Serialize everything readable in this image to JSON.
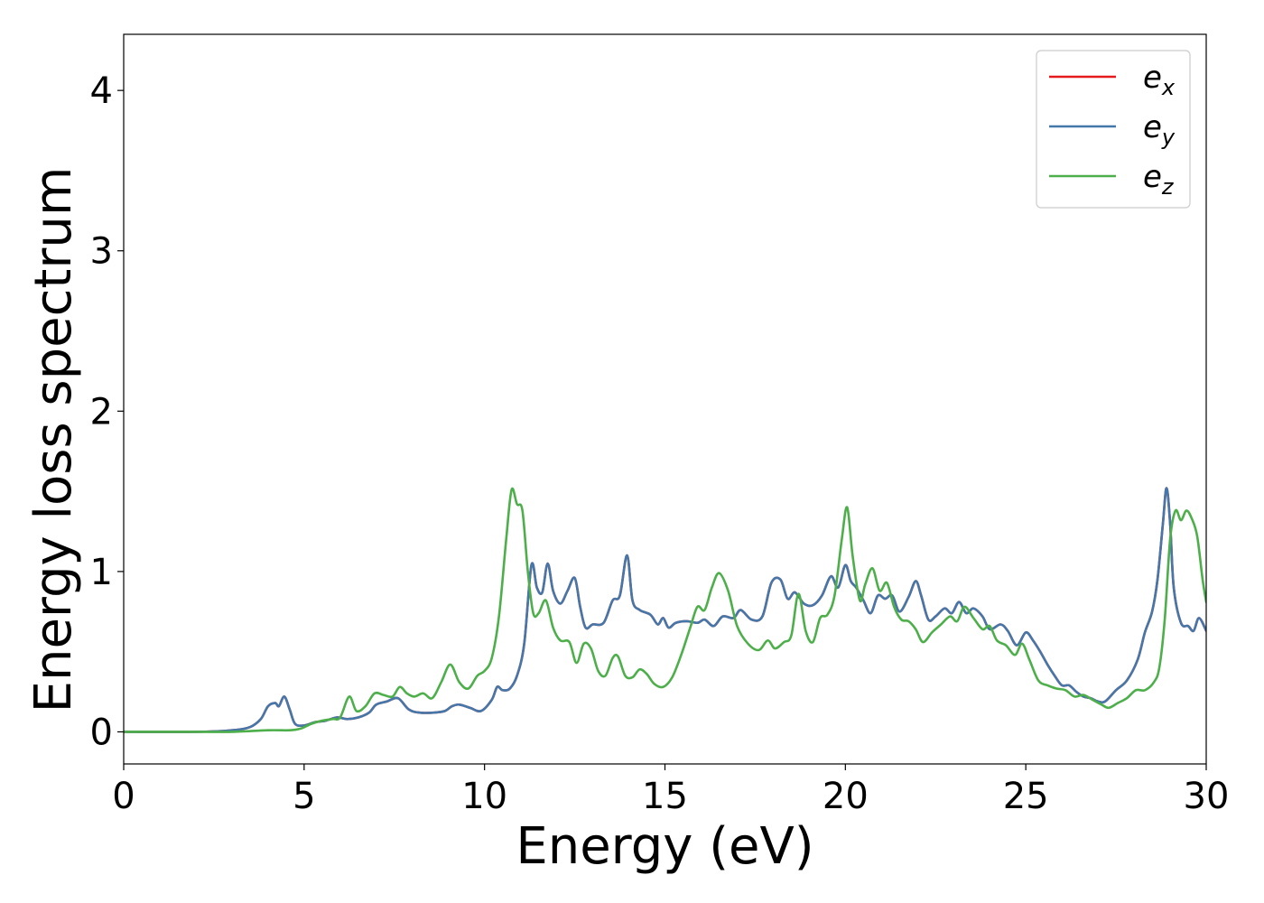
{
  "chart_data": {
    "type": "line",
    "title": "",
    "xlabel": "Energy (eV)",
    "ylabel": "Energy loss spectrum",
    "xlim": [
      0,
      30
    ],
    "ylim": [
      -0.2,
      4.35
    ],
    "xticks": [
      0,
      5,
      10,
      15,
      20,
      25,
      30
    ],
    "yticks": [
      0,
      1,
      2,
      3,
      4
    ],
    "grid": false,
    "legend_position": "top-right",
    "series": [
      {
        "name": "e_x",
        "label_main": "e",
        "label_sub": "x",
        "color": "#e41a1c",
        "x": [
          0,
          2,
          3,
          3.5,
          3.8,
          4.0,
          4.2,
          4.3,
          4.45,
          4.6,
          4.75,
          5.0,
          5.3,
          5.6,
          5.9,
          6.2,
          6.5,
          6.8,
          7.0,
          7.3,
          7.6,
          7.9,
          8.2,
          8.6,
          8.9,
          9.1,
          9.3,
          9.6,
          9.9,
          10.2,
          10.35,
          10.5,
          10.7,
          10.9,
          11.1,
          11.3,
          11.45,
          11.6,
          11.75,
          11.9,
          12.1,
          12.3,
          12.5,
          12.65,
          12.8,
          13.0,
          13.3,
          13.55,
          13.75,
          13.95,
          14.1,
          14.3,
          14.6,
          14.8,
          14.95,
          15.1,
          15.3,
          15.6,
          15.9,
          16.1,
          16.35,
          16.6,
          16.9,
          17.1,
          17.4,
          17.7,
          17.95,
          18.2,
          18.4,
          18.6,
          18.85,
          19.1,
          19.35,
          19.6,
          19.8,
          20.0,
          20.15,
          20.3,
          20.5,
          20.7,
          20.9,
          21.1,
          21.3,
          21.5,
          21.75,
          21.95,
          22.1,
          22.3,
          22.5,
          22.75,
          22.95,
          23.15,
          23.35,
          23.55,
          23.8,
          24.0,
          24.3,
          24.5,
          24.75,
          25.0,
          25.2,
          25.4,
          25.6,
          25.8,
          26.0,
          26.2,
          26.4,
          26.6,
          26.8,
          27.0,
          27.2,
          27.5,
          27.8,
          28.1,
          28.3,
          28.5,
          28.65,
          28.8,
          28.9,
          29.0,
          29.1,
          29.3,
          29.5,
          29.65,
          29.8,
          30.0
        ],
        "y": [
          0,
          0,
          0.01,
          0.03,
          0.08,
          0.16,
          0.18,
          0.16,
          0.22,
          0.14,
          0.05,
          0.04,
          0.06,
          0.07,
          0.09,
          0.08,
          0.09,
          0.12,
          0.17,
          0.19,
          0.21,
          0.14,
          0.12,
          0.12,
          0.13,
          0.16,
          0.17,
          0.15,
          0.13,
          0.2,
          0.28,
          0.26,
          0.27,
          0.35,
          0.55,
          1.04,
          0.9,
          0.87,
          1.05,
          0.88,
          0.8,
          0.88,
          0.96,
          0.78,
          0.65,
          0.67,
          0.68,
          0.82,
          0.85,
          1.1,
          0.82,
          0.76,
          0.73,
          0.67,
          0.71,
          0.65,
          0.68,
          0.69,
          0.68,
          0.7,
          0.66,
          0.72,
          0.71,
          0.76,
          0.7,
          0.72,
          0.93,
          0.95,
          0.83,
          0.87,
          0.8,
          0.79,
          0.85,
          0.97,
          0.9,
          1.04,
          0.94,
          0.9,
          0.82,
          0.74,
          0.85,
          0.83,
          0.85,
          0.75,
          0.84,
          0.94,
          0.85,
          0.7,
          0.72,
          0.77,
          0.74,
          0.81,
          0.74,
          0.77,
          0.72,
          0.64,
          0.67,
          0.63,
          0.54,
          0.62,
          0.57,
          0.5,
          0.42,
          0.35,
          0.29,
          0.29,
          0.25,
          0.22,
          0.21,
          0.19,
          0.19,
          0.26,
          0.32,
          0.45,
          0.62,
          0.75,
          0.95,
          1.3,
          1.52,
          1.3,
          0.9,
          0.68,
          0.66,
          0.63,
          0.71,
          0.63
        ]
      },
      {
        "name": "e_y",
        "label_main": "e",
        "label_sub": "y",
        "color": "#4477aa",
        "x": [
          0,
          2,
          3,
          3.5,
          3.8,
          4.0,
          4.2,
          4.3,
          4.45,
          4.6,
          4.75,
          5.0,
          5.3,
          5.6,
          5.9,
          6.2,
          6.5,
          6.8,
          7.0,
          7.3,
          7.6,
          7.9,
          8.2,
          8.6,
          8.9,
          9.1,
          9.3,
          9.6,
          9.9,
          10.2,
          10.35,
          10.5,
          10.7,
          10.9,
          11.1,
          11.3,
          11.45,
          11.6,
          11.75,
          11.9,
          12.1,
          12.3,
          12.5,
          12.65,
          12.8,
          13.0,
          13.3,
          13.55,
          13.75,
          13.95,
          14.1,
          14.3,
          14.6,
          14.8,
          14.95,
          15.1,
          15.3,
          15.6,
          15.9,
          16.1,
          16.35,
          16.6,
          16.9,
          17.1,
          17.4,
          17.7,
          17.95,
          18.2,
          18.4,
          18.6,
          18.85,
          19.1,
          19.35,
          19.6,
          19.8,
          20.0,
          20.15,
          20.3,
          20.5,
          20.7,
          20.9,
          21.1,
          21.3,
          21.5,
          21.75,
          21.95,
          22.1,
          22.3,
          22.5,
          22.75,
          22.95,
          23.15,
          23.35,
          23.55,
          23.8,
          24.0,
          24.3,
          24.5,
          24.75,
          25.0,
          25.2,
          25.4,
          25.6,
          25.8,
          26.0,
          26.2,
          26.4,
          26.6,
          26.8,
          27.0,
          27.2,
          27.5,
          27.8,
          28.1,
          28.3,
          28.5,
          28.65,
          28.8,
          28.9,
          29.0,
          29.1,
          29.3,
          29.5,
          29.65,
          29.8,
          30.0
        ],
        "y": [
          0,
          0,
          0.01,
          0.03,
          0.08,
          0.16,
          0.18,
          0.16,
          0.22,
          0.14,
          0.05,
          0.04,
          0.06,
          0.07,
          0.09,
          0.08,
          0.09,
          0.12,
          0.17,
          0.19,
          0.21,
          0.14,
          0.12,
          0.12,
          0.13,
          0.16,
          0.17,
          0.15,
          0.13,
          0.2,
          0.28,
          0.26,
          0.27,
          0.35,
          0.55,
          1.04,
          0.9,
          0.87,
          1.05,
          0.88,
          0.8,
          0.88,
          0.96,
          0.78,
          0.65,
          0.67,
          0.68,
          0.82,
          0.85,
          1.1,
          0.82,
          0.76,
          0.73,
          0.67,
          0.71,
          0.65,
          0.68,
          0.69,
          0.68,
          0.7,
          0.66,
          0.72,
          0.71,
          0.76,
          0.7,
          0.72,
          0.93,
          0.95,
          0.83,
          0.87,
          0.8,
          0.79,
          0.85,
          0.97,
          0.9,
          1.04,
          0.94,
          0.9,
          0.82,
          0.74,
          0.85,
          0.83,
          0.85,
          0.75,
          0.84,
          0.94,
          0.85,
          0.7,
          0.72,
          0.77,
          0.74,
          0.81,
          0.74,
          0.77,
          0.72,
          0.64,
          0.67,
          0.63,
          0.54,
          0.62,
          0.57,
          0.5,
          0.42,
          0.35,
          0.29,
          0.29,
          0.25,
          0.22,
          0.21,
          0.19,
          0.19,
          0.26,
          0.32,
          0.45,
          0.62,
          0.75,
          0.95,
          1.3,
          1.52,
          1.3,
          0.9,
          0.68,
          0.66,
          0.63,
          0.71,
          0.63
        ]
      },
      {
        "name": "e_z",
        "label_main": "e",
        "label_sub": "z",
        "color": "#4daf4a",
        "x": [
          0,
          2,
          3,
          4,
          4.6,
          4.9,
          5.2,
          5.5,
          5.8,
          6.0,
          6.25,
          6.45,
          6.7,
          6.95,
          7.2,
          7.45,
          7.65,
          7.85,
          8.05,
          8.3,
          8.55,
          8.8,
          9.05,
          9.3,
          9.55,
          9.8,
          10.0,
          10.2,
          10.4,
          10.6,
          10.75,
          10.9,
          11.05,
          11.2,
          11.35,
          11.5,
          11.7,
          11.9,
          12.1,
          12.35,
          12.55,
          12.75,
          12.95,
          13.15,
          13.35,
          13.55,
          13.7,
          13.9,
          14.1,
          14.3,
          14.5,
          14.7,
          14.95,
          15.2,
          15.45,
          15.7,
          15.9,
          16.1,
          16.3,
          16.5,
          16.75,
          17.0,
          17.3,
          17.6,
          17.85,
          18.05,
          18.3,
          18.5,
          18.7,
          18.9,
          19.1,
          19.3,
          19.5,
          19.7,
          19.9,
          20.05,
          20.2,
          20.4,
          20.55,
          20.75,
          20.95,
          21.15,
          21.35,
          21.55,
          21.75,
          21.95,
          22.15,
          22.4,
          22.65,
          22.9,
          23.1,
          23.3,
          23.55,
          23.8,
          24.0,
          24.2,
          24.45,
          24.7,
          24.9,
          25.1,
          25.35,
          25.6,
          25.85,
          26.1,
          26.35,
          26.6,
          26.85,
          27.1,
          27.3,
          27.55,
          27.8,
          28.05,
          28.3,
          28.55,
          28.7,
          28.85,
          29.0,
          29.15,
          29.3,
          29.45,
          29.6,
          29.75,
          29.9,
          30.0
        ],
        "y": [
          0,
          0,
          0,
          0.01,
          0.01,
          0.02,
          0.05,
          0.07,
          0.08,
          0.09,
          0.22,
          0.13,
          0.16,
          0.24,
          0.23,
          0.22,
          0.28,
          0.24,
          0.22,
          0.24,
          0.21,
          0.31,
          0.42,
          0.31,
          0.27,
          0.35,
          0.38,
          0.46,
          0.72,
          1.2,
          1.51,
          1.42,
          1.38,
          1.0,
          0.74,
          0.74,
          0.82,
          0.65,
          0.57,
          0.56,
          0.43,
          0.55,
          0.52,
          0.38,
          0.35,
          0.46,
          0.47,
          0.35,
          0.34,
          0.39,
          0.36,
          0.3,
          0.28,
          0.34,
          0.48,
          0.65,
          0.78,
          0.76,
          0.9,
          0.99,
          0.88,
          0.66,
          0.55,
          0.51,
          0.57,
          0.52,
          0.56,
          0.6,
          0.86,
          0.63,
          0.56,
          0.71,
          0.73,
          0.85,
          1.2,
          1.4,
          1.1,
          0.82,
          0.92,
          1.02,
          0.88,
          0.93,
          0.78,
          0.7,
          0.69,
          0.64,
          0.56,
          0.62,
          0.67,
          0.72,
          0.69,
          0.78,
          0.71,
          0.64,
          0.66,
          0.57,
          0.54,
          0.48,
          0.55,
          0.45,
          0.32,
          0.29,
          0.27,
          0.26,
          0.22,
          0.23,
          0.2,
          0.17,
          0.15,
          0.18,
          0.21,
          0.26,
          0.26,
          0.31,
          0.4,
          0.7,
          1.2,
          1.38,
          1.32,
          1.38,
          1.33,
          1.22,
          0.95,
          0.81
        ]
      }
    ]
  }
}
